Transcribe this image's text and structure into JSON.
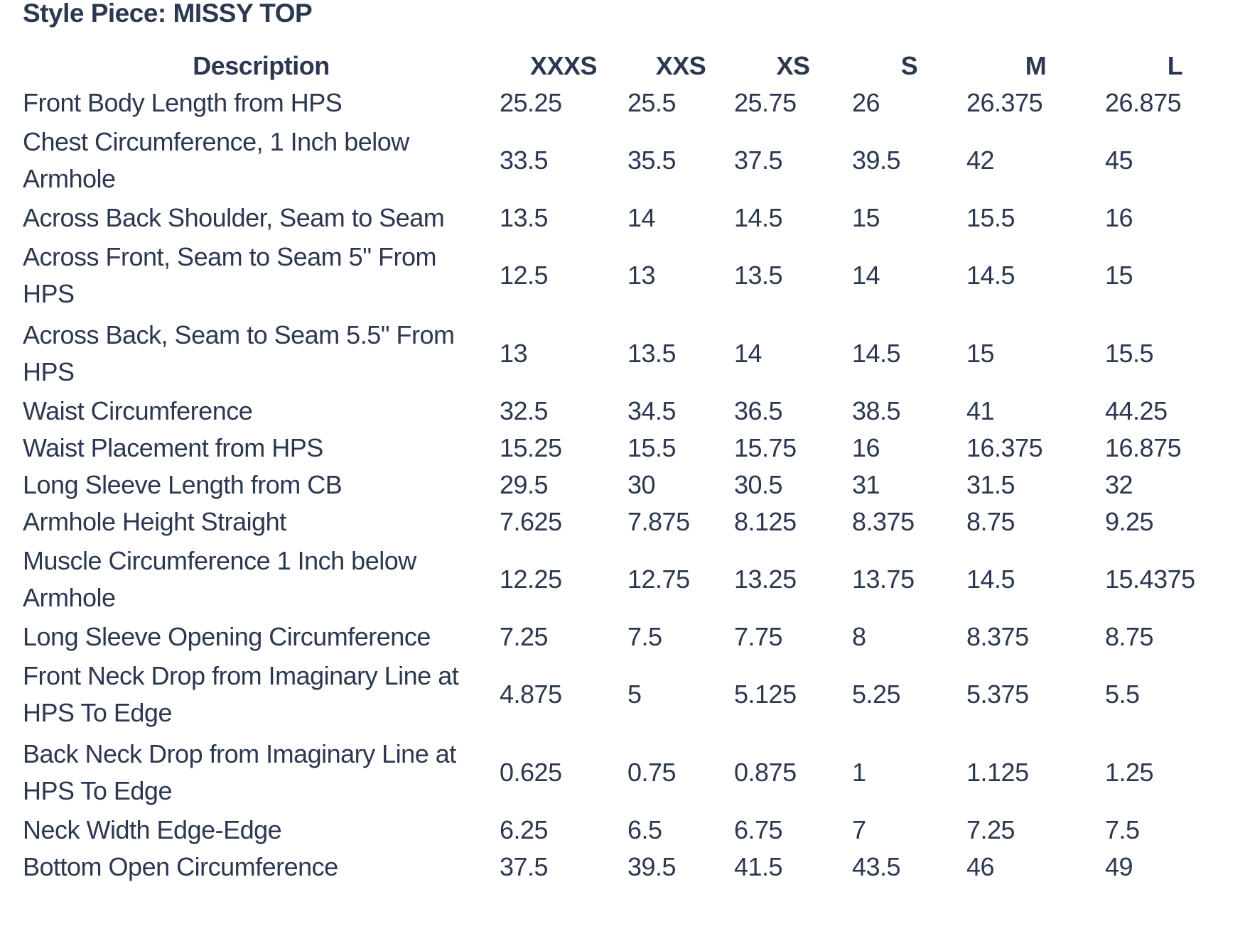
{
  "page": {
    "title": "Style Piece: MISSY TOP"
  },
  "colors": {
    "text": "#2c3850",
    "background": "#ffffff"
  },
  "table": {
    "columns": [
      "Description",
      "XXXS",
      "XXS",
      "XS",
      "S",
      "M",
      "L"
    ],
    "rows": [
      {
        "label_lines": [
          "Front Body Length from HPS"
        ],
        "values": [
          "25.25",
          "25.5",
          "25.75",
          "26",
          "26.375",
          "26.875"
        ]
      },
      {
        "label_lines": [
          "Chest Circumference, 1 Inch below",
          "Armhole"
        ],
        "values": [
          "33.5",
          "35.5",
          "37.5",
          "39.5",
          "42",
          "45"
        ]
      },
      {
        "label_lines": [
          "Across Back Shoulder, Seam to Seam"
        ],
        "values": [
          "13.5",
          "14",
          "14.5",
          "15",
          "15.5",
          "16"
        ]
      },
      {
        "label_lines": [
          "Across Front, Seam to Seam 5\" From",
          "HPS"
        ],
        "values": [
          "12.5",
          "13",
          "13.5",
          "14",
          "14.5",
          "15"
        ]
      },
      {
        "label_lines": [
          "Across Back, Seam to Seam 5.5\" From",
          "HPS"
        ],
        "values": [
          "13",
          "13.5",
          "14",
          "14.5",
          "15",
          "15.5"
        ]
      },
      {
        "label_lines": [
          "Waist Circumference"
        ],
        "values": [
          "32.5",
          "34.5",
          "36.5",
          "38.5",
          "41",
          "44.25"
        ]
      },
      {
        "label_lines": [
          "Waist Placement from HPS"
        ],
        "values": [
          "15.25",
          "15.5",
          "15.75",
          "16",
          "16.375",
          "16.875"
        ]
      },
      {
        "label_lines": [
          "Long Sleeve Length from CB"
        ],
        "values": [
          "29.5",
          "30",
          "30.5",
          "31",
          "31.5",
          "32"
        ]
      },
      {
        "label_lines": [
          "Armhole Height Straight"
        ],
        "values": [
          "7.625",
          "7.875",
          "8.125",
          "8.375",
          "8.75",
          "9.25"
        ]
      },
      {
        "label_lines": [
          "Muscle Circumference 1 Inch below",
          "Armhole"
        ],
        "values": [
          "12.25",
          "12.75",
          "13.25",
          "13.75",
          "14.5",
          "15.4375"
        ]
      },
      {
        "label_lines": [
          "Long Sleeve Opening Circumference"
        ],
        "values": [
          "7.25",
          "7.5",
          "7.75",
          "8",
          "8.375",
          "8.75"
        ]
      },
      {
        "label_lines": [
          "Front Neck Drop from Imaginary Line at",
          "HPS To Edge"
        ],
        "values": [
          "4.875",
          "5",
          "5.125",
          "5.25",
          "5.375",
          "5.5"
        ]
      },
      {
        "label_lines": [
          "Back Neck Drop from Imaginary Line at",
          "HPS To Edge"
        ],
        "values": [
          "0.625",
          "0.75",
          "0.875",
          "1",
          "1.125",
          "1.25"
        ]
      },
      {
        "label_lines": [
          "Neck Width Edge-Edge"
        ],
        "values": [
          "6.25",
          "6.5",
          "6.75",
          "7",
          "7.25",
          "7.5"
        ]
      },
      {
        "label_lines": [
          "Bottom Open Circumference"
        ],
        "values": [
          "37.5",
          "39.5",
          "41.5",
          "43.5",
          "46",
          "49"
        ]
      }
    ]
  }
}
